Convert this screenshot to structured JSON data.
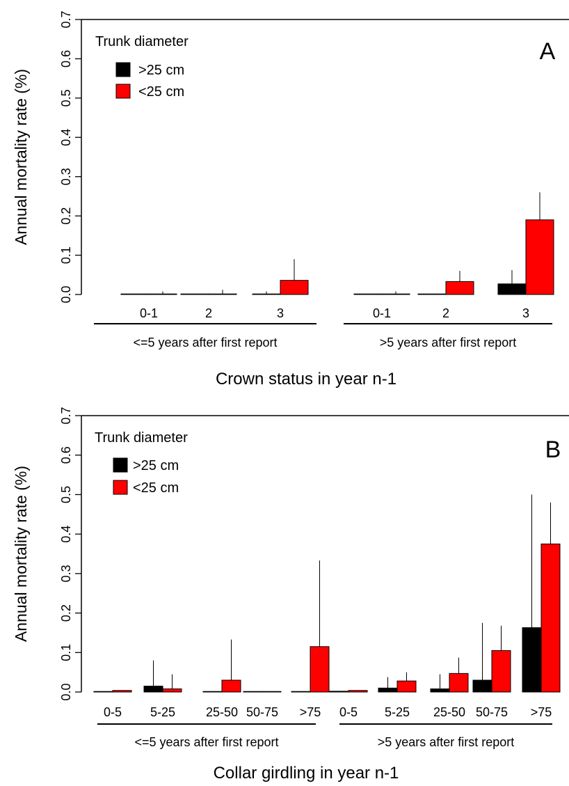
{
  "chart_data": [
    {
      "type": "bar",
      "panel_label": "A",
      "xlabel": "Crown status in year n-1",
      "ylabel": "Annual mortality rate (%)",
      "ylim": [
        0,
        0.7
      ],
      "yticks": [
        "0.0",
        "0.1",
        "0.2",
        "0.3",
        "0.4",
        "0.5",
        "0.6",
        "0.7"
      ],
      "legend": {
        "title": "Trunk diameter",
        "placement": "top-left"
      },
      "series": [
        {
          "name": ">25 cm",
          "color": "#000000"
        },
        {
          "name": "<25 cm",
          "color": "#ff0000"
        }
      ],
      "groups": [
        {
          "label": "<=5 years after first report",
          "categories": [
            "0-1",
            "2",
            "3"
          ],
          "values": {
            ">25 cm": [
              0.0,
              0.0,
              0.0
            ],
            "<25 cm": [
              0.001,
              0.001,
              0.036
            ]
          },
          "error_upper": {
            ">25 cm": [
              0.0,
              0.0,
              0.008
            ],
            "<25 cm": [
              0.008,
              0.012,
              0.09
            ]
          }
        },
        {
          "label": ">5 years after first report",
          "categories": [
            "0-1",
            "2",
            "3"
          ],
          "values": {
            ">25 cm": [
              0.0,
              0.0,
              0.027
            ],
            "<25 cm": [
              0.001,
              0.033,
              0.19
            ]
          },
          "error_upper": {
            ">25 cm": [
              0.0,
              0.0,
              0.062
            ],
            "<25 cm": [
              0.008,
              0.06,
              0.26
            ]
          }
        }
      ]
    },
    {
      "type": "bar",
      "panel_label": "B",
      "xlabel": "Collar girdling in year n-1",
      "ylabel": "Annual mortality rate (%)",
      "ylim": [
        0,
        0.7
      ],
      "yticks": [
        "0.0",
        "0.1",
        "0.2",
        "0.3",
        "0.4",
        "0.5",
        "0.6",
        "0.7"
      ],
      "legend": {
        "title": "Trunk diameter",
        "placement": "top-left"
      },
      "series": [
        {
          "name": ">25 cm",
          "color": "#000000"
        },
        {
          "name": "<25 cm",
          "color": "#ff0000"
        }
      ],
      "groups": [
        {
          "label": "<=5 years after first report",
          "categories": [
            "0-5",
            "5-25",
            "25-50",
            "50-75",
            ">75"
          ],
          "values": {
            ">25 cm": [
              0.0,
              0.015,
              0.0,
              0.0,
              0.0
            ],
            "<25 cm": [
              0.004,
              0.008,
              0.03,
              0.0,
              0.115
            ]
          },
          "error_upper": {
            ">25 cm": [
              0.0,
              0.08,
              0.0,
              0.0,
              0.0
            ],
            "<25 cm": [
              0.0,
              0.045,
              0.133,
              0.0,
              0.333
            ]
          }
        },
        {
          "label": ">5 years after first report",
          "categories": [
            "0-5",
            "5-25",
            "25-50",
            "50-75",
            ">75"
          ],
          "values": {
            ">25 cm": [
              0.002,
              0.01,
              0.008,
              0.03,
              0.163
            ],
            "<25 cm": [
              0.004,
              0.028,
              0.047,
              0.105,
              0.375
            ]
          },
          "error_upper": {
            ">25 cm": [
              0.0,
              0.038,
              0.045,
              0.175,
              0.5
            ],
            "<25 cm": [
              0.0,
              0.05,
              0.087,
              0.168,
              0.48
            ]
          }
        }
      ]
    }
  ]
}
